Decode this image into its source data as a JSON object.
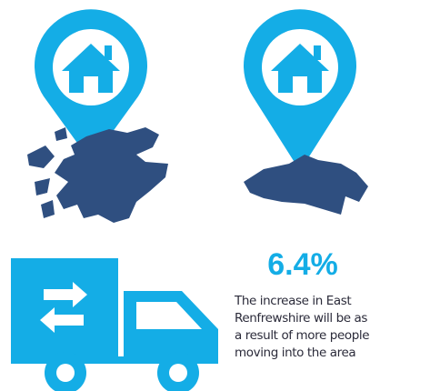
{
  "stat": {
    "value": "6.4%",
    "description": [
      "The increase in East",
      "Renfrewshire will be as",
      "a result of more people",
      "moving into the area"
    ]
  }
}
